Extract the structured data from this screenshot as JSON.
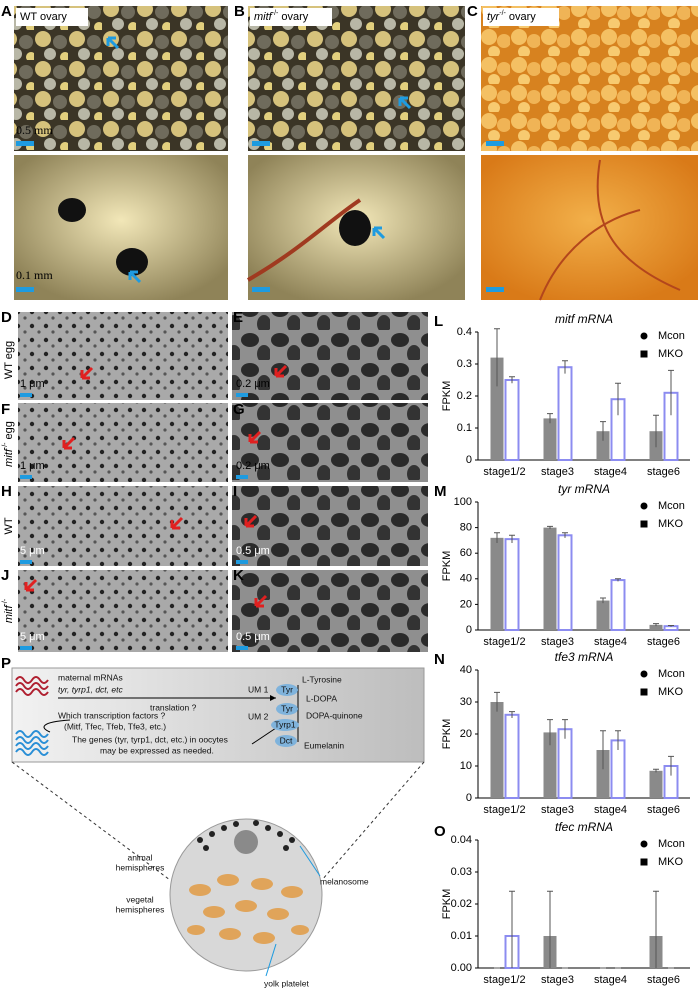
{
  "panel_labels": [
    "A",
    "B",
    "C",
    "D",
    "E",
    "F",
    "G",
    "H",
    "I",
    "J",
    "K",
    "L",
    "M",
    "N",
    "O",
    "P"
  ],
  "ovary_labels": {
    "wt": "WT ovary",
    "mitf": {
      "gene": "mitf",
      "genotype": "-/-",
      "suffix": "ovary"
    },
    "tyr": {
      "gene": "tyr",
      "genotype": "-/-",
      "suffix": "ovary"
    }
  },
  "row_labels": {
    "d": "WT egg",
    "f": {
      "gene": "mitf",
      "genotype": "-/-",
      "suffix": "egg"
    },
    "h": "WT",
    "j": {
      "gene": "mitf",
      "genotype": "-/-"
    }
  },
  "scale_bars": {
    "a_top": "0.5 mm",
    "a_bottom": "0.1 mm",
    "d": "1 μm",
    "e": "0.2 μm",
    "f": "1 μm",
    "g": "0.2 μm",
    "h": "5 μm",
    "i": "0.5 μm",
    "j": "5 μm",
    "k": "0.5 μm"
  },
  "diagram": {
    "maternal": "maternal mRNAs",
    "genes": "tyr, tyrp1, dct, etc",
    "translation": "translation ?",
    "um1": "UM 1",
    "um2": "UM 2",
    "tf_question": "Which transcription factors ?",
    "tf_list": "(Mitf, Tfec, Tfeb, Tfe3, etc.)",
    "expr_line1": "The genes (tyr, tyrp1, dct, etc.) in oocytes",
    "expr_line2": "may be expressed as needed.",
    "pathway": [
      "L-Tyrosine",
      "L-DOPA",
      "DOPA-quinone",
      "Eumelanin"
    ],
    "enzymes": [
      "Tyr",
      "Tyr",
      "Tyrp1",
      "Dct"
    ],
    "animal": [
      "animal",
      "hemispheres"
    ],
    "vegetal": [
      "vegetal",
      "hemispheres"
    ],
    "melanosome": "melanosome",
    "yolk": "yolk platelet"
  },
  "chart_data": [
    {
      "type": "bar",
      "title": "mitf mRNA",
      "y_label": "FPKM",
      "categories": [
        "stage1/2",
        "stage3",
        "stage4",
        "stage6"
      ],
      "series": [
        {
          "name": "Mcon",
          "color": "#8a8a8a",
          "bar_style": "filled",
          "marker": "circle",
          "values": [
            0.32,
            0.13,
            0.09,
            0.09
          ],
          "errors": [
            0.09,
            0.015,
            0.03,
            0.05
          ]
        },
        {
          "name": "MKO",
          "color": "#8c8cf0",
          "bar_style": "outline",
          "marker": "square",
          "values": [
            0.25,
            0.29,
            0.19,
            0.21
          ],
          "errors": [
            0.01,
            0.02,
            0.05,
            0.07
          ]
        }
      ],
      "ylim": [
        0,
        0.4
      ],
      "yticks": [
        0,
        0.1,
        0.2,
        0.3,
        0.4
      ]
    },
    {
      "type": "bar",
      "title": "tyr mRNA",
      "y_label": "FPKM",
      "categories": [
        "stage1/2",
        "stage3",
        "stage4",
        "stage6"
      ],
      "series": [
        {
          "name": "Mcon",
          "color": "#8a8a8a",
          "bar_style": "filled",
          "marker": "circle",
          "values": [
            72,
            80,
            23,
            4
          ],
          "errors": [
            4,
            1,
            2,
            1
          ]
        },
        {
          "name": "MKO",
          "color": "#8c8cf0",
          "bar_style": "outline",
          "marker": "square",
          "values": [
            71,
            74,
            39,
            3
          ],
          "errors": [
            3,
            2,
            1,
            0.5
          ]
        }
      ],
      "ylim": [
        0,
        100
      ],
      "yticks": [
        0,
        20,
        40,
        60,
        80,
        100
      ]
    },
    {
      "type": "bar",
      "title": "tfe3 mRNA",
      "y_label": "FPKM",
      "categories": [
        "stage1/2",
        "stage3",
        "stage4",
        "stage6"
      ],
      "series": [
        {
          "name": "Mcon",
          "color": "#8a8a8a",
          "bar_style": "filled",
          "marker": "circle",
          "values": [
            30,
            20.5,
            15,
            8.5
          ],
          "errors": [
            3,
            4,
            6,
            0.5
          ]
        },
        {
          "name": "MKO",
          "color": "#8c8cf0",
          "bar_style": "outline",
          "marker": "square",
          "values": [
            26,
            21.5,
            18,
            10
          ],
          "errors": [
            1,
            3,
            3,
            3
          ]
        }
      ],
      "ylim": [
        0,
        40
      ],
      "yticks": [
        0,
        10,
        20,
        30,
        40
      ]
    },
    {
      "type": "bar",
      "title": "tfec mRNA",
      "y_label": "FPKM",
      "categories": [
        "stage1/2",
        "stage3",
        "stage4",
        "stage6"
      ],
      "series": [
        {
          "name": "Mcon",
          "color": "#8a8a8a",
          "bar_style": "filled",
          "marker": "circle",
          "values": [
            0,
            0.01,
            0,
            0.01
          ],
          "errors": [
            0,
            0.014,
            0,
            0.014
          ]
        },
        {
          "name": "MKO",
          "color": "#8c8cf0",
          "bar_style": "outline",
          "marker": "square",
          "values": [
            0.01,
            0,
            0,
            0
          ],
          "errors": [
            0.014,
            0,
            0,
            0
          ]
        }
      ],
      "ylim": [
        0,
        0.04
      ],
      "yticks": [
        {
          "value": 0,
          "label": "0.00"
        },
        0.01,
        0.02,
        0.03,
        0.04
      ]
    }
  ]
}
